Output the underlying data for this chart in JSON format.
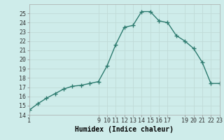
{
  "x": [
    1,
    2,
    3,
    4,
    5,
    6,
    7,
    8,
    9,
    10,
    11,
    12,
    13,
    14,
    15,
    16,
    17,
    18,
    19,
    20,
    21,
    22,
    23
  ],
  "y": [
    14.5,
    15.2,
    15.8,
    16.3,
    16.8,
    17.1,
    17.2,
    17.4,
    17.6,
    19.3,
    21.6,
    23.5,
    23.7,
    25.2,
    25.2,
    24.2,
    24.0,
    22.6,
    22.0,
    21.2,
    19.7,
    17.4,
    17.4
  ],
  "line_color": "#2d7b6f",
  "marker": "+",
  "marker_size": 4,
  "linewidth": 1.0,
  "bg_color": "#ceecea",
  "grid_color": "#c0dbd8",
  "xlabel": "Humidex (Indice chaleur)",
  "xlim": [
    1,
    23
  ],
  "ylim": [
    14,
    26
  ],
  "yticks": [
    14,
    15,
    16,
    17,
    18,
    19,
    20,
    21,
    22,
    23,
    24,
    25
  ],
  "xticks": [
    1,
    9,
    10,
    11,
    12,
    13,
    14,
    15,
    16,
    17,
    19,
    20,
    21,
    22,
    23
  ],
  "xtick_labels": [
    "1",
    "9",
    "10",
    "11",
    "12",
    "13",
    "14",
    "15",
    "16",
    "17",
    "19",
    "20",
    "21",
    "22",
    "23"
  ],
  "tick_fontsize": 6,
  "xlabel_fontsize": 7
}
